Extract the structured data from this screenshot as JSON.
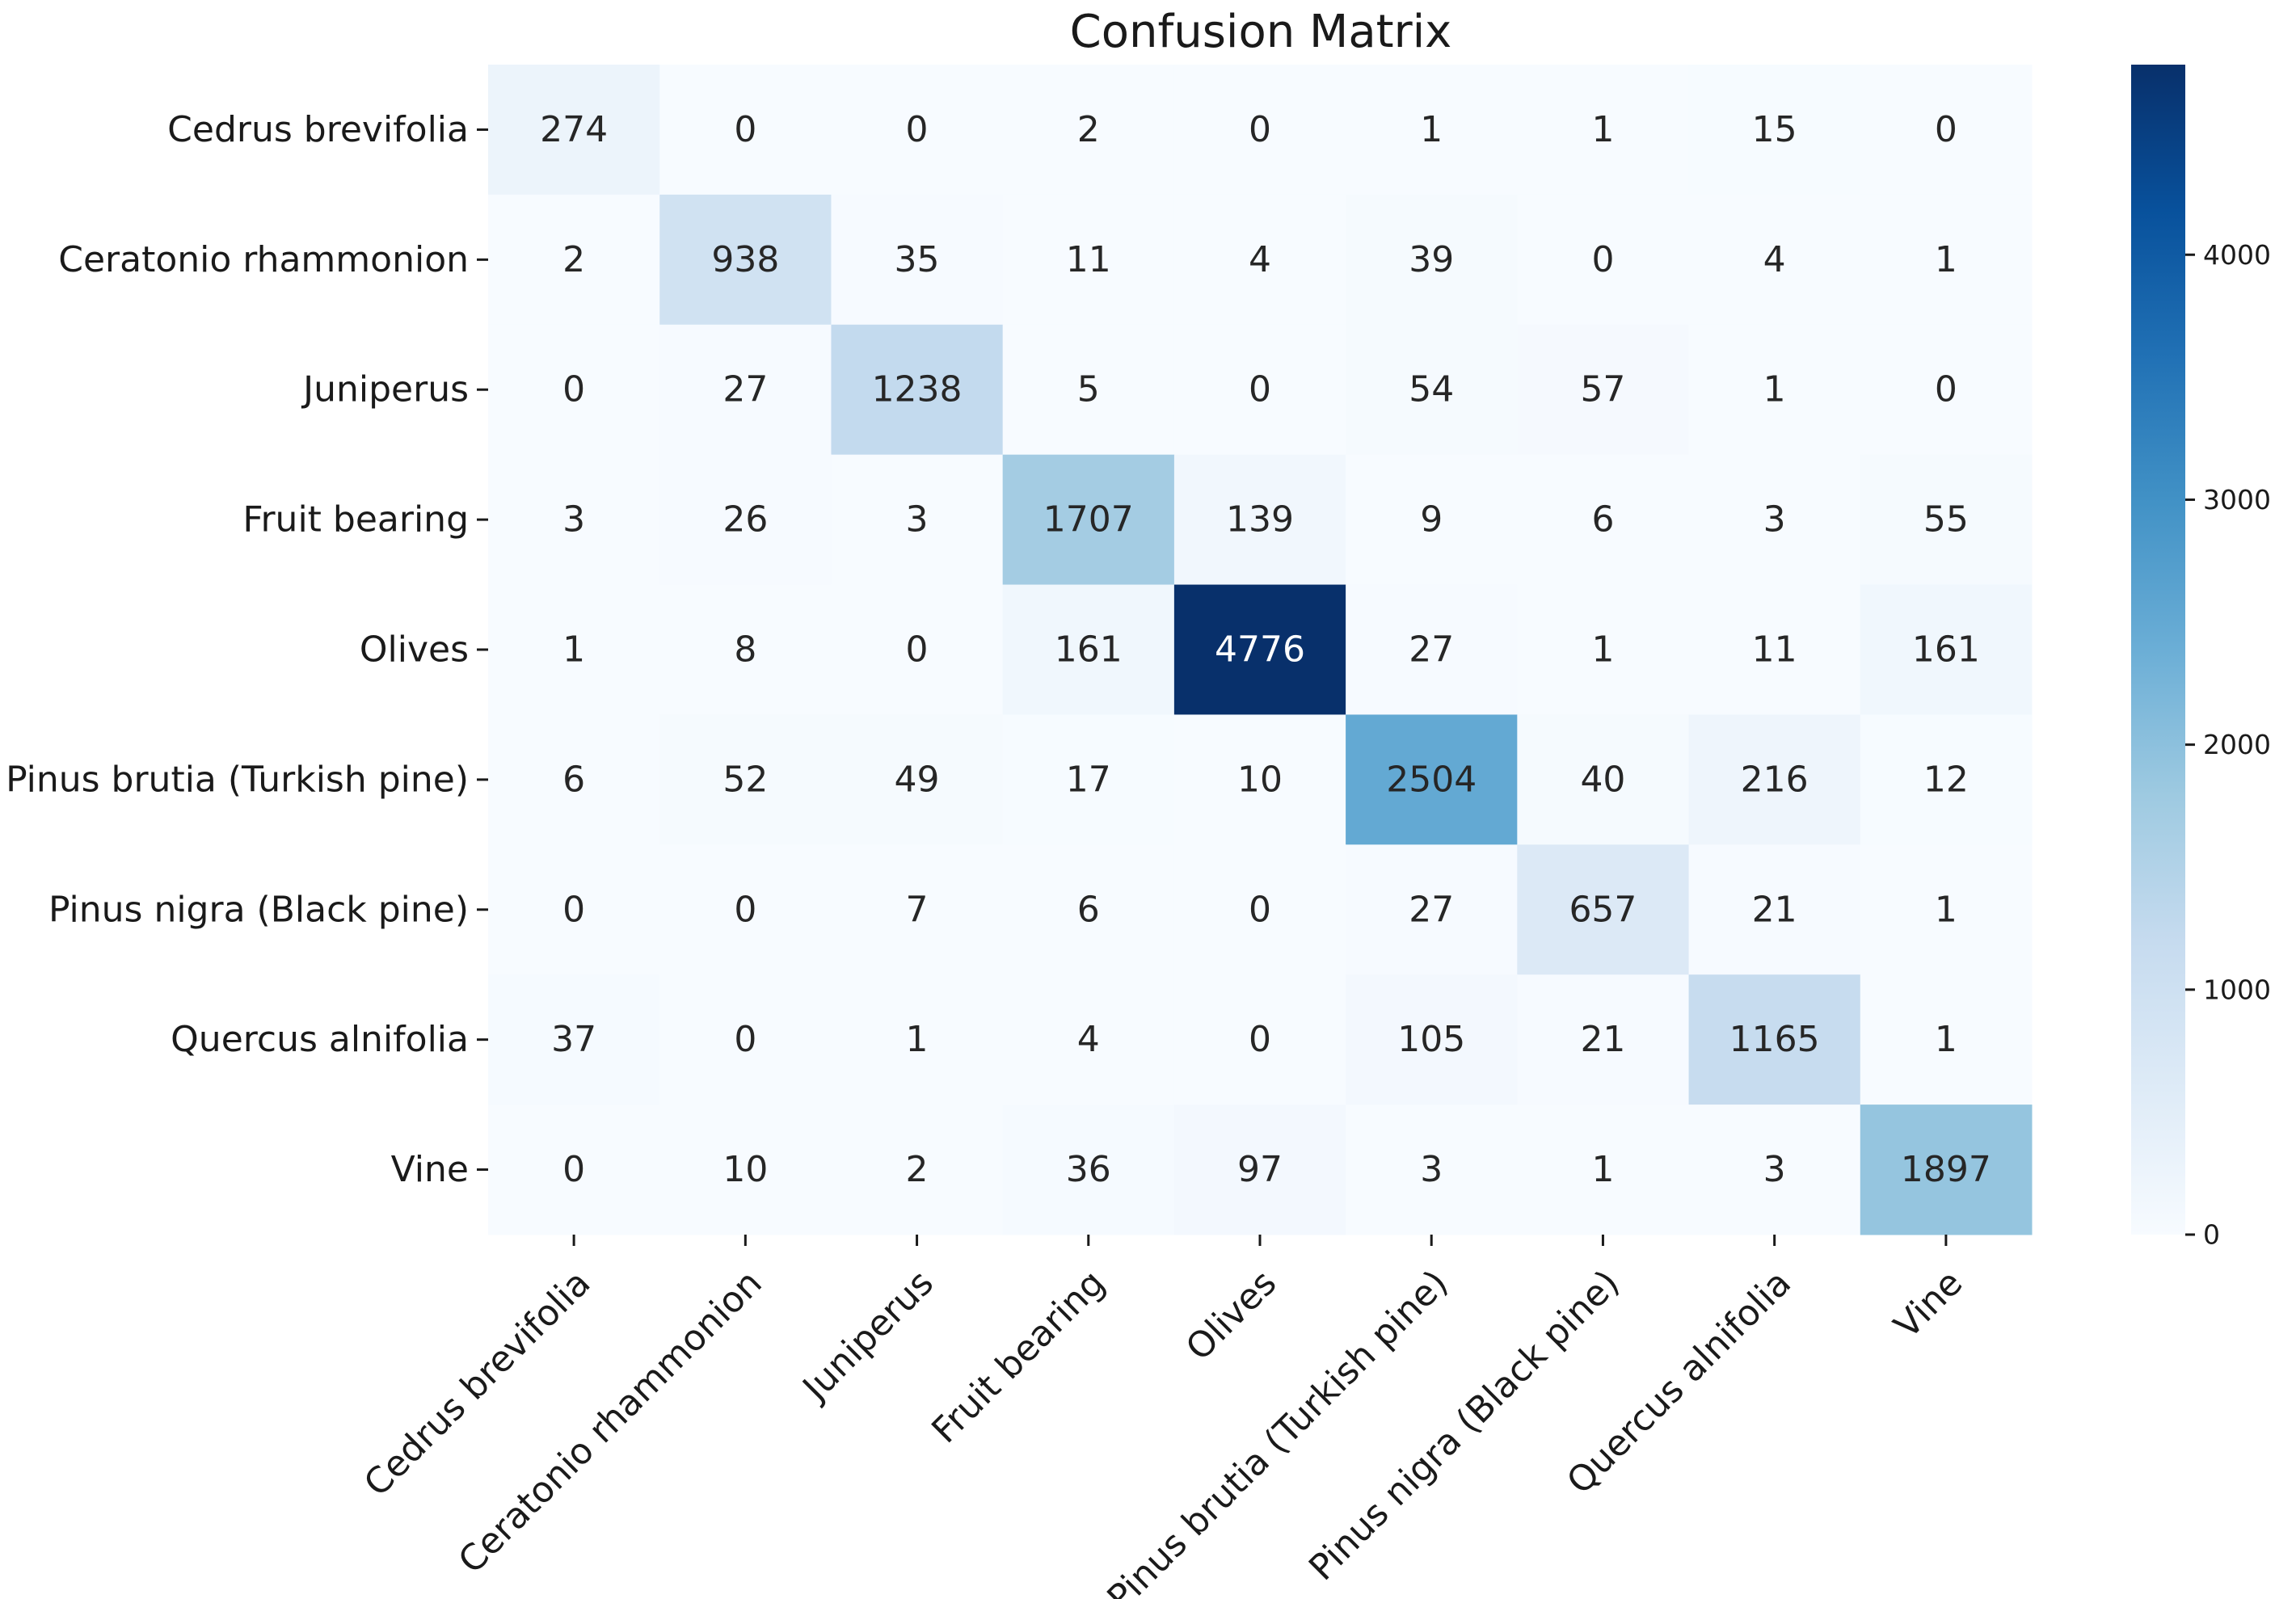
{
  "chart_data": {
    "type": "heatmap",
    "title": "Confusion Matrix",
    "xlabel": "",
    "ylabel": "",
    "row_labels": [
      "Cedrus brevifolia",
      "Ceratonio rhammonion",
      "Juniperus",
      "Fruit bearing",
      "Olives",
      "Pinus brutia (Turkish pine)",
      "Pinus nigra (Black pine)",
      "Quercus alnifolia",
      "Vine"
    ],
    "col_labels": [
      "Cedrus brevifolia",
      "Ceratonio rhammonion",
      "Juniperus",
      "Fruit bearing",
      "Olives",
      "Pinus brutia (Turkish pine)",
      "Pinus nigra (Black pine)",
      "Quercus alnifolia",
      "Vine"
    ],
    "matrix": [
      [
        274,
        0,
        0,
        2,
        0,
        1,
        1,
        15,
        0
      ],
      [
        2,
        938,
        35,
        11,
        4,
        39,
        0,
        4,
        1
      ],
      [
        0,
        27,
        1238,
        5,
        0,
        54,
        57,
        1,
        0
      ],
      [
        3,
        26,
        3,
        1707,
        139,
        9,
        6,
        3,
        55
      ],
      [
        1,
        8,
        0,
        161,
        4776,
        27,
        1,
        11,
        161
      ],
      [
        6,
        52,
        49,
        17,
        10,
        2504,
        40,
        216,
        12
      ],
      [
        0,
        0,
        7,
        6,
        0,
        27,
        657,
        21,
        1
      ],
      [
        37,
        0,
        1,
        4,
        0,
        105,
        21,
        1165,
        1
      ],
      [
        0,
        10,
        2,
        36,
        97,
        3,
        1,
        3,
        1897
      ]
    ],
    "colorscale": "Blues",
    "vmin": 0,
    "vmax": 4776,
    "colorbar_ticks": [
      0,
      1000,
      2000,
      3000,
      4000
    ],
    "colorbar_tick_labels": [
      "0",
      "1000",
      "2000",
      "3000",
      "4000"
    ],
    "annotated": true,
    "grid": false,
    "legend": "colorbar-right"
  }
}
